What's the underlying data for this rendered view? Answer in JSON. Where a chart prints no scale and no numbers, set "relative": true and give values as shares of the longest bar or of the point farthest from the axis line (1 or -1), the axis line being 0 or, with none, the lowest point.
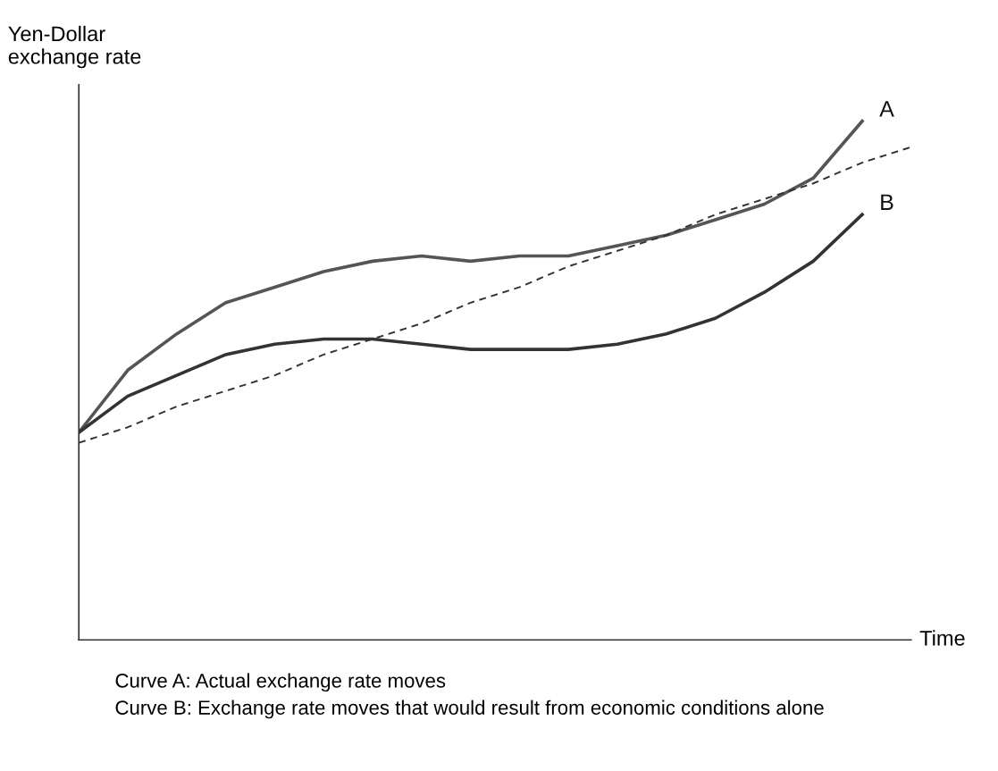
{
  "chart_data": {
    "type": "line",
    "relative": true,
    "ylabel": "Yen-Dollar\nexchange rate",
    "xlabel": "Time",
    "categories": [
      null,
      null,
      null,
      null,
      null,
      null,
      null,
      null,
      null,
      null,
      null,
      null,
      null,
      null,
      null,
      null,
      null,
      null
    ],
    "series": [
      {
        "name": "A",
        "color": "#555555",
        "values": [
          0.4,
          0.52,
          0.59,
          0.65,
          0.68,
          0.71,
          0.73,
          0.74,
          0.73,
          0.74,
          0.74,
          0.76,
          0.78,
          0.81,
          0.84,
          0.89,
          1.0,
          null
        ]
      },
      {
        "name": "B",
        "color": "#333333",
        "values": [
          0.4,
          0.47,
          0.51,
          0.55,
          0.57,
          0.58,
          0.58,
          0.57,
          0.56,
          0.56,
          0.56,
          0.57,
          0.59,
          0.62,
          0.67,
          0.73,
          0.82,
          null
        ]
      },
      {
        "color": "#333333",
        "line_style": "dashed",
        "values": [
          0.38,
          0.41,
          0.45,
          0.48,
          0.51,
          0.55,
          0.58,
          0.61,
          0.65,
          0.68,
          0.72,
          0.75,
          0.78,
          0.82,
          0.85,
          0.88,
          0.92,
          0.95
        ]
      }
    ],
    "annotations": [
      "Curve A: Actual exchange rate moves",
      "Curve B: Exchange rate moves that would result from economic conditions alone"
    ],
    "grid": false,
    "legend": false
  }
}
